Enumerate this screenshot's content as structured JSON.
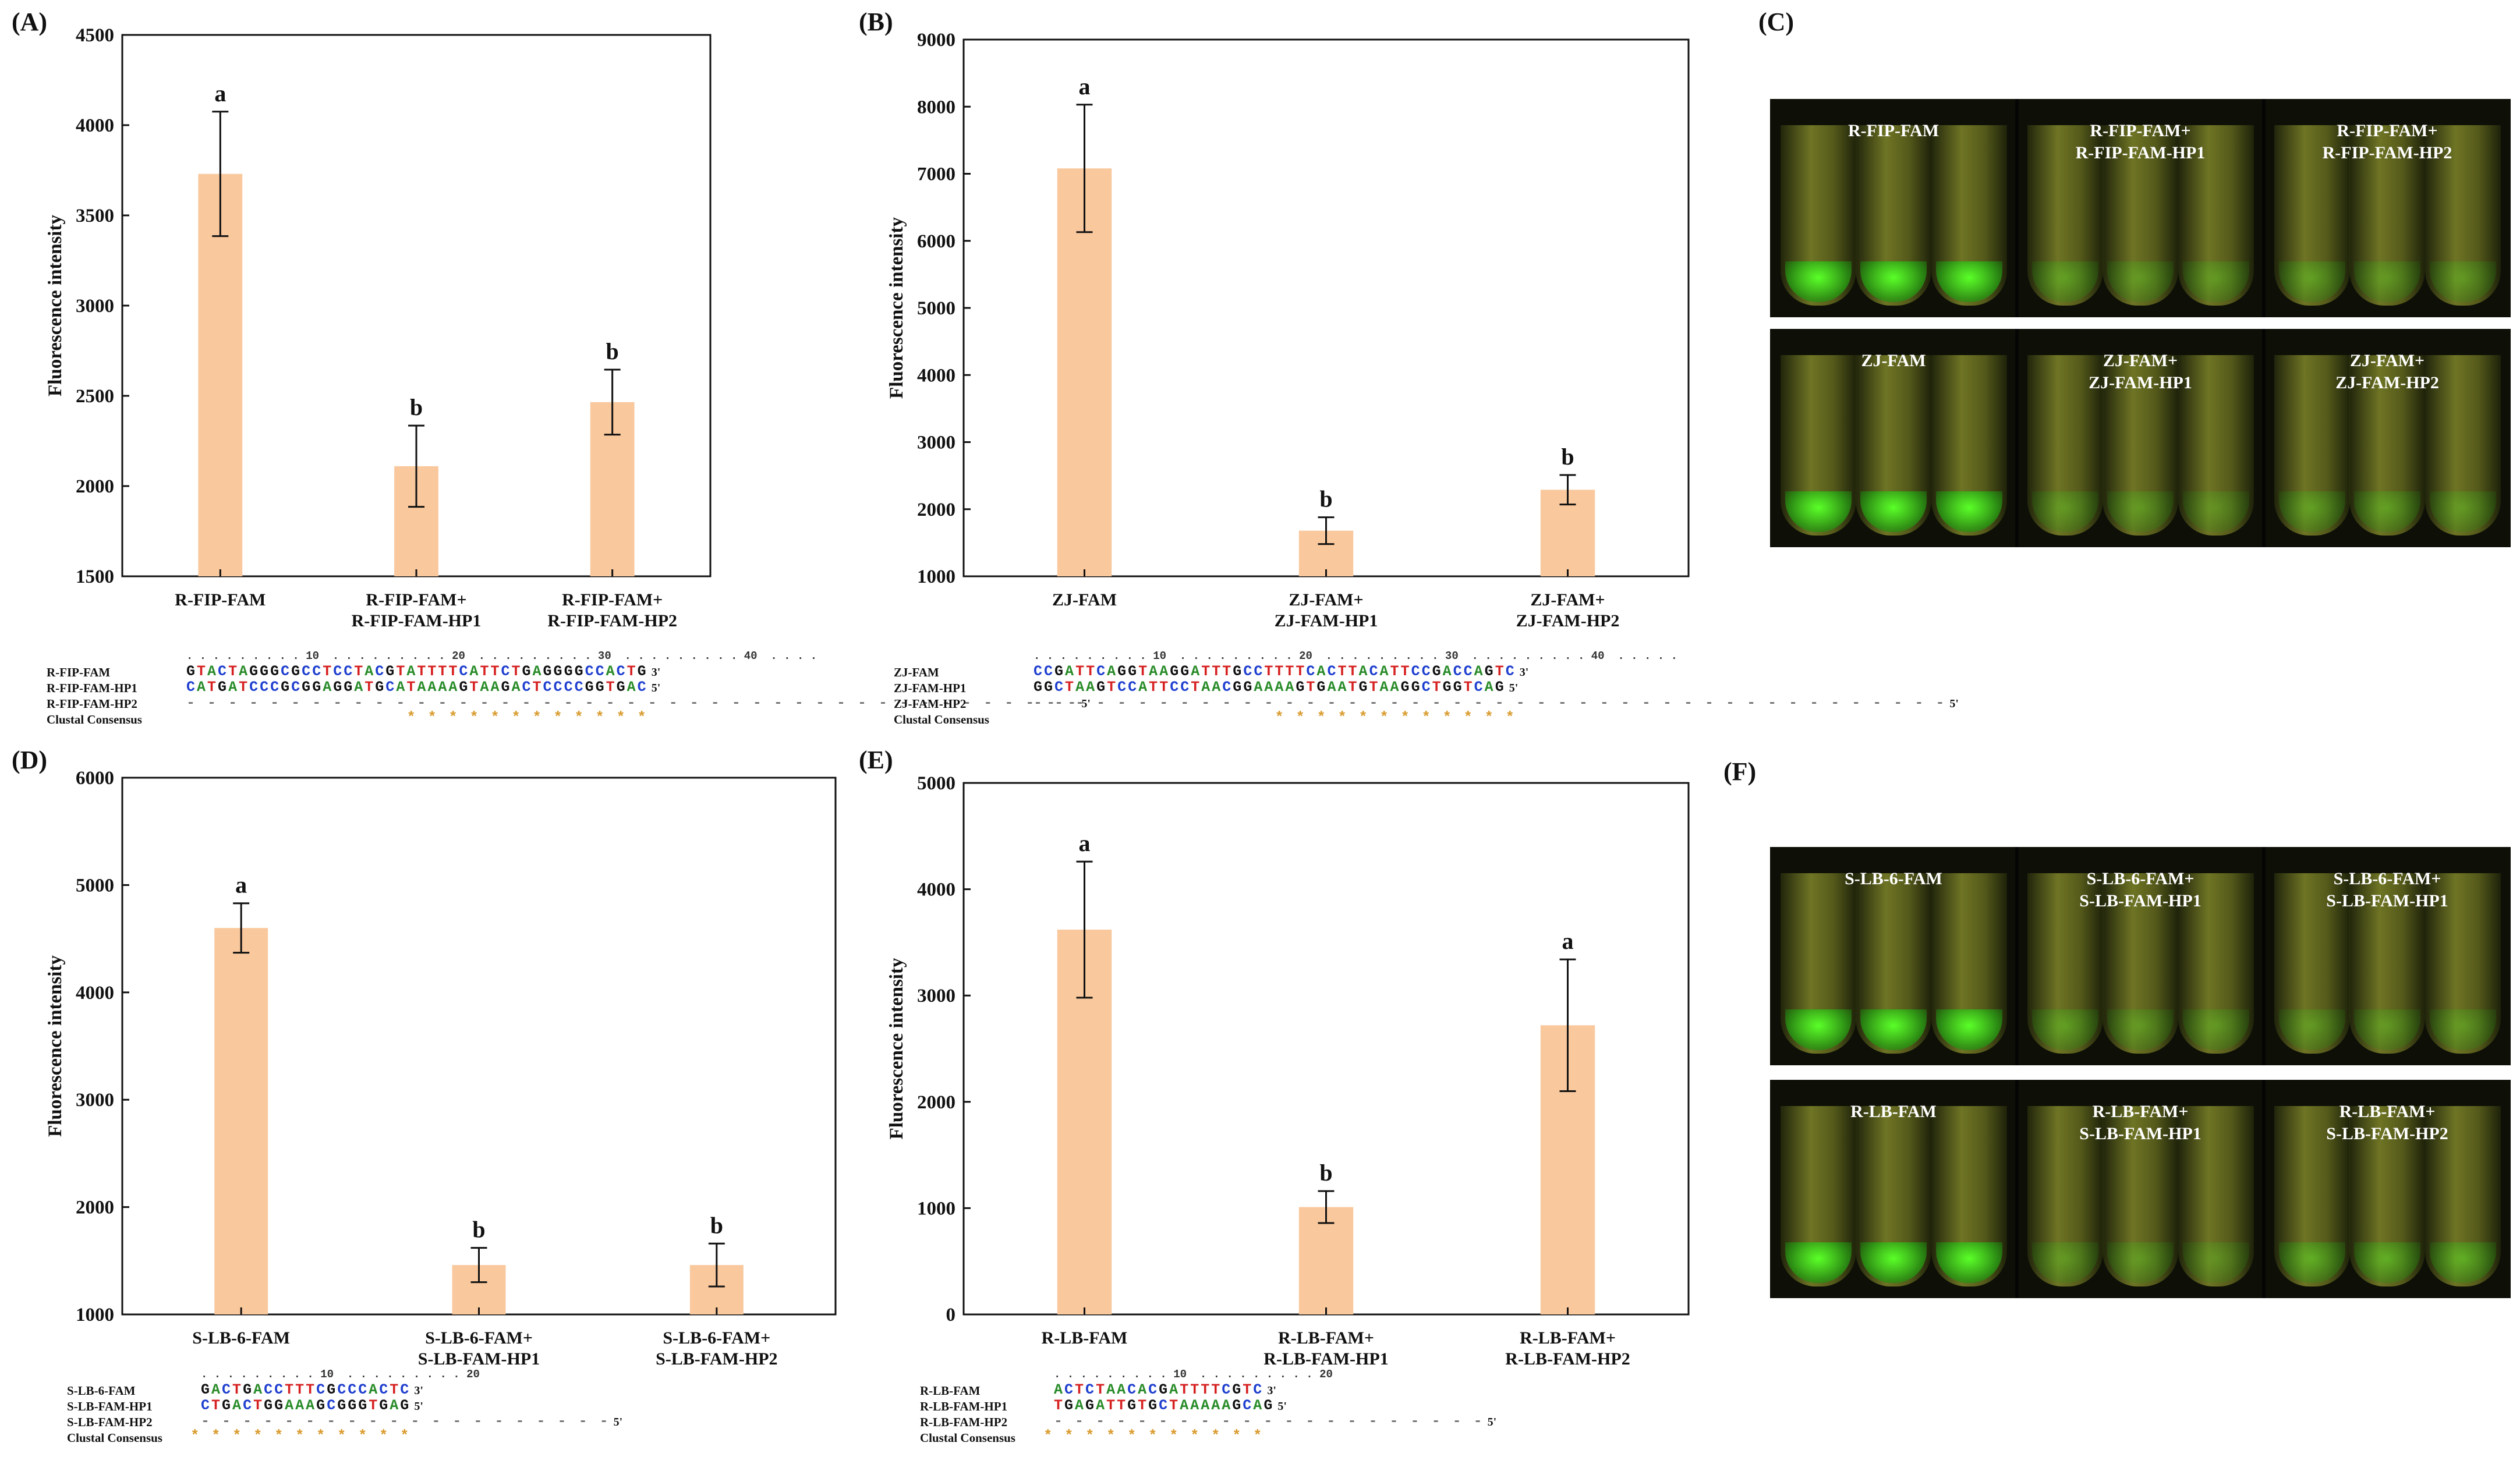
{
  "panels": {
    "A": {
      "letter": "(A)"
    },
    "B": {
      "letter": "(B)"
    },
    "C": {
      "letter": "(C)"
    },
    "D": {
      "letter": "(D)"
    },
    "E": {
      "letter": "(E)"
    },
    "F": {
      "letter": "(F)"
    }
  },
  "colors": {
    "bar": "#f9c89d",
    "error": "#111111",
    "frame": "#111111"
  },
  "chart_data": [
    {
      "id": "A",
      "type": "bar",
      "ylabel": "Fluorescence intensity",
      "ylim": [
        1500,
        4500
      ],
      "yticks": [
        1500,
        2000,
        2500,
        3000,
        3500,
        4000,
        4500
      ],
      "categories": [
        "R-FIP-FAM",
        "R-FIP-FAM+\nR-FIP-FAM-HP1",
        "R-FIP-FAM+\nR-FIP-FAM-HP2"
      ],
      "values": [
        3730,
        2110,
        2465
      ],
      "errors": [
        345,
        225,
        180
      ],
      "labels": [
        "a",
        "b",
        "b"
      ]
    },
    {
      "id": "B",
      "type": "bar",
      "ylabel": "Fluorescence intensity",
      "ylim": [
        1000,
        9000
      ],
      "yticks": [
        1000,
        2000,
        3000,
        4000,
        5000,
        6000,
        7000,
        8000,
        9000
      ],
      "categories": [
        "ZJ-FAM",
        "ZJ-FAM+\nZJ-FAM-HP1",
        "ZJ-FAM+\nZJ-FAM-HP2"
      ],
      "values": [
        7080,
        1680,
        2290
      ],
      "errors": [
        950,
        200,
        220
      ],
      "labels": [
        "a",
        "b",
        "b"
      ]
    },
    {
      "id": "D",
      "type": "bar",
      "ylabel": "Fluorescence intensity",
      "ylim": [
        1000,
        6000
      ],
      "yticks": [
        1000,
        2000,
        3000,
        4000,
        5000,
        6000
      ],
      "categories": [
        "S-LB-6-FAM",
        "S-LB-6-FAM+\nS-LB-FAM-HP1",
        "S-LB-6-FAM+\nS-LB-FAM-HP2"
      ],
      "values": [
        4600,
        1460,
        1460
      ],
      "errors": [
        230,
        160,
        200
      ],
      "labels": [
        "a",
        "b",
        "b"
      ]
    },
    {
      "id": "E",
      "type": "bar",
      "ylabel": "Fluorescence intensity",
      "ylim": [
        0,
        5000
      ],
      "yticks": [
        0,
        1000,
        2000,
        3000,
        4000,
        5000
      ],
      "categories": [
        "R-LB-FAM",
        "R-LB-FAM+\nR-LB-FAM-HP1",
        "R-LB-FAM+\nR-LB-FAM-HP2"
      ],
      "values": [
        3620,
        1010,
        2720
      ],
      "errors": [
        640,
        150,
        620
      ],
      "labels": [
        "a",
        "b",
        "a"
      ]
    }
  ],
  "alignments": {
    "A": {
      "rows": [
        {
          "name": "R-FIP-FAM",
          "seq": "GTACTAGGGCGCCTCCTACGTATTTTCATTCTGAGGGGCCACTG",
          "end": "3'"
        },
        {
          "name": "R-FIP-FAM-HP1",
          "seq": "CATGATCCCGCGGAGGATGCATAAAAGTAAGACTCCCCGGTGAC",
          "end": "5'"
        },
        {
          "name": "R-FIP-FAM-HP2",
          "seq": "- - - - - - - - - - - - - - - - - - - - - - - - - - - - - - - - - - - - - - - - - - -",
          "end": "5'"
        },
        {
          "name": "Clustal Consensus",
          "seq": "",
          "end": ""
        }
      ],
      "ruler": ". . . . . . . . . 10  . . . . . . . . . 20  . . . . . . . . . 30  . . . . . . . . . 40  . . . .",
      "consensus": "* * * * * * * * * * * *"
    },
    "B": {
      "rows": [
        {
          "name": "ZJ-FAM",
          "seq": "CCGATTCAGGTAAGGATTTGCCTTTTCACTTACATTCCGACCAGTC",
          "end": "3'"
        },
        {
          "name": "ZJ-FAM-HP1",
          "seq": "GGCTAAGTCCATTCCTAACGGAAAAGTGAATGTAAGGCTGGTCAG",
          "end": "5'"
        },
        {
          "name": "ZJ-FAM-HP2",
          "seq": "- - - - - - - - - - - - - - - - - - - - - - - - - - - - - - - - - - - - - - - - - - - -",
          "end": "5'"
        },
        {
          "name": "Clustal Consensus",
          "seq": "",
          "end": ""
        }
      ],
      "ruler": ". . . . . . . . . 10  . . . . . . . . . 20  . . . . . . . . . 30  . . . . . . . . . 40  . . . . .",
      "consensus": "* * * * * * * * * * * *"
    },
    "D": {
      "rows": [
        {
          "name": "S-LB-6-FAM",
          "seq": "GACTGACCTTTCGCCCACTC",
          "end": "3'"
        },
        {
          "name": "S-LB-FAM-HP1",
          "seq": "CTGACTGGAAAGCGGGTGAG",
          "end": "5'"
        },
        {
          "name": "S-LB-FAM-HP2",
          "seq": "- - - - - - - - - - - - - - - - - - - -",
          "end": "5'"
        },
        {
          "name": "Clustal Consensus",
          "seq": "",
          "end": ""
        }
      ],
      "ruler": ". . . . . . . . . 10  . . . . . . . . . 20",
      "consensus": "* * * * * * * * * * *"
    },
    "E": {
      "rows": [
        {
          "name": "R-LB-FAM",
          "seq": "ACTCTAACACGATTTTCGTC",
          "end": "3'"
        },
        {
          "name": "R-LB-FAM-HP1",
          "seq": "TGAGATTGTGCTAAAAAGCAG",
          "end": "5'"
        },
        {
          "name": "R-LB-FAM-HP2",
          "seq": "- - - - - - - - - - - - - - - - - - - - -",
          "end": "5'"
        },
        {
          "name": "Clustal Consensus",
          "seq": "",
          "end": ""
        }
      ],
      "ruler": ". . . . . . . . . 10  . . . . . . . . . 20",
      "consensus": "* * * * * * * * * * *"
    }
  },
  "photos": {
    "C_top": {
      "labels": [
        "R-FIP-FAM",
        "R-FIP-FAM+\nR-FIP-FAM-HP1",
        "R-FIP-FAM+\nR-FIP-FAM-HP2"
      ]
    },
    "C_bottom": {
      "labels": [
        "ZJ-FAM",
        "ZJ-FAM+\nZJ-FAM-HP1",
        "ZJ-FAM+\nZJ-FAM-HP2"
      ]
    },
    "F_top": {
      "labels": [
        "S-LB-6-FAM",
        "S-LB-6-FAM+\nS-LB-FAM-HP1",
        "S-LB-6-FAM+\nS-LB-FAM-HP1"
      ]
    },
    "F_bottom": {
      "labels": [
        "R-LB-FAM",
        "R-LB-FAM+\nS-LB-FAM-HP1",
        "R-LB-FAM+\nS-LB-FAM-HP2"
      ]
    }
  }
}
